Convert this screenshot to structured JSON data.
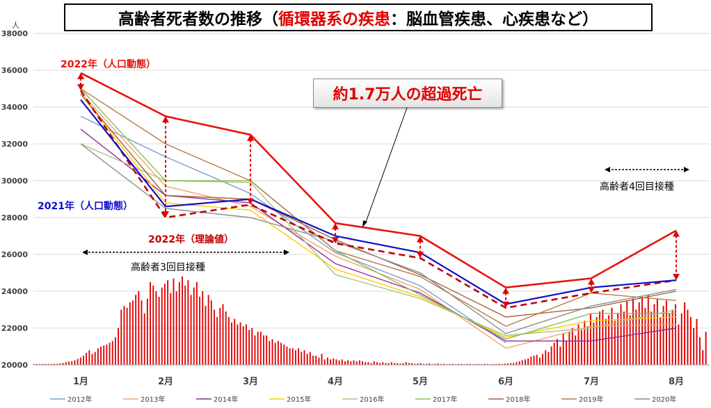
{
  "title": {
    "prefix": "高齢者死者数の推移（",
    "highlight": "循環器系の疾患",
    "suffix": "：脳血管疾患、心疾患など）"
  },
  "callout": "約1.7万人の超過死亡",
  "chart_data": {
    "type": "line",
    "unit_label": "人",
    "categories": [
      "1月",
      "2月",
      "3月",
      "4月",
      "5月",
      "6月",
      "7月",
      "8月"
    ],
    "ylim": [
      20000,
      38000
    ],
    "yticks": [
      20000,
      22000,
      24000,
      26000,
      28000,
      30000,
      32000,
      34000,
      36000,
      38000
    ],
    "grid": true,
    "legend_position": "bottom",
    "colors": {
      "2022_actual": "#e8120c",
      "2021_actual": "#1010c8",
      "2022_theory": "#c00000",
      "vaccine_bars": "#e00000"
    },
    "background_series": [
      {
        "name": "2012年",
        "color": "#7b9bd1",
        "values": [
          33500,
          31300,
          29300,
          26100,
          24300,
          21200,
          null,
          null
        ]
      },
      {
        "name": "2013年",
        "color": "#f4a468",
        "values": [
          34800,
          29700,
          28600,
          25900,
          24100,
          20900,
          22100,
          22200
        ]
      },
      {
        "name": "2014年",
        "color": "#8b2c9c",
        "values": [
          32800,
          29200,
          28800,
          25500,
          23900,
          21300,
          21300,
          22000
        ]
      },
      {
        "name": "2015年",
        "color": "#ffcc00",
        "values": [
          34700,
          28800,
          28400,
          25200,
          23700,
          21500,
          22400,
          22600
        ]
      },
      {
        "name": "2016年",
        "color": "#a9c47f",
        "values": [
          32000,
          30000,
          29900,
          24900,
          23600,
          21600,
          22000,
          23000
        ]
      },
      {
        "name": "2017年",
        "color": "#8bbd5c",
        "values": [
          35000,
          30000,
          30000,
          26200,
          23800,
          21400,
          22800,
          22800
        ]
      },
      {
        "name": "2018年",
        "color": "#a0663c",
        "values": [
          34700,
          29200,
          29000,
          26800,
          24900,
          22600,
          23100,
          24000
        ]
      },
      {
        "name": "2019年",
        "color": "#b57a48",
        "values": [
          35000,
          32000,
          30000,
          26200,
          24800,
          22100,
          23900,
          23500
        ]
      },
      {
        "name": "2020年",
        "color": "#8c8c8c",
        "values": [
          32000,
          28500,
          28000,
          26700,
          25000,
          21700,
          23200,
          24100
        ]
      }
    ],
    "series_2022_actual": {
      "values": [
        35850,
        33500,
        32500,
        27700,
        27000,
        24200,
        24700,
        27300
      ]
    },
    "series_2021_actual": {
      "values": [
        34400,
        28600,
        29000,
        27000,
        26100,
        23300,
        24200,
        24600
      ]
    },
    "series_2022_theory": {
      "values": [
        34900,
        28000,
        28700,
        26600,
        25800,
        23100,
        23900,
        24600
      ]
    },
    "labels": {
      "actual_2022": "2022年（人口動態）",
      "actual_2021": "2021年（人口動態）",
      "theory_2022": "2022年（理論値）",
      "vaccine_3rd": "高齢者3回目接種",
      "vaccine_4th": "高齢者4回目接種"
    },
    "vaccine_3rd_bars": [
      20050,
      20050,
      20050,
      20050,
      20050,
      20050,
      20050,
      20060,
      20060,
      20080,
      20100,
      20150,
      20180,
      20200,
      20250,
      20320,
      20400,
      20500,
      20650,
      20800,
      20600,
      20700,
      20900,
      21000,
      21050,
      21100,
      21200,
      21300,
      21500,
      22000,
      23000,
      23200,
      23100,
      23400,
      23500,
      23800,
      24000,
      23500,
      22800,
      23600,
      24500,
      24300,
      24000,
      23700,
      24200,
      24400,
      24600,
      23900,
      24700,
      24000,
      24500,
      24800,
      24300,
      24600,
      23800,
      24200,
      24500,
      23700,
      24000,
      23200,
      23800,
      23500,
      23000,
      22600,
      23100,
      23300,
      22900,
      22600,
      22300,
      22500,
      22200,
      22300,
      22100,
      22200,
      21900,
      22000,
      21600,
      21800,
      21800,
      21600,
      21600,
      21300,
      21400,
      21200,
      21300,
      21200,
      21100,
      21000,
      20900,
      20900,
      20800,
      20900,
      20700,
      20800,
      20600,
      20700,
      20500,
      20500,
      20400,
      20600,
      20300,
      20400,
      20300,
      20350,
      20300,
      20250,
      20300,
      20200,
      20250,
      20200,
      20250,
      20200,
      20250,
      20200,
      20150,
      20150,
      20100,
      20200,
      20150,
      20100,
      20150,
      20100,
      20100,
      20150,
      20100,
      20100,
      20080,
      20100,
      20150,
      20100,
      20100,
      20060,
      20080,
      20100,
      20050,
      20060,
      20080,
      20050,
      20060,
      20080,
      20050,
      20060,
      20040,
      20050,
      20060,
      20040,
      20050,
      20050,
      20040,
      20050,
      20060,
      20040,
      20050,
      20050,
      20040,
      20060,
      20050,
      20040,
      20050,
      20050,
      20060,
      20050,
      20070,
      20080,
      20100,
      20100,
      20150,
      20200,
      20250,
      20300,
      20350,
      20450,
      20500,
      20550,
      20400,
      20600,
      20800,
      20700,
      21000,
      21200
    ],
    "vaccine_4th_bars": [
      21400,
      21000,
      21700,
      21300,
      21800,
      22000,
      21600,
      22200,
      21900,
      22400,
      22100,
      22800,
      22300,
      22600,
      22900,
      23000,
      22500,
      22700,
      23100,
      22400,
      22800,
      23300,
      22900,
      23500,
      22700,
      23600,
      23000,
      23400,
      23700,
      23100,
      23800,
      22900,
      23300,
      23600,
      22600,
      23200,
      23500,
      22800,
      23000,
      23300,
      22200,
      22800,
      23400,
      23000,
      22600,
      22000,
      22500,
      21500,
      20800,
      21800
    ]
  }
}
